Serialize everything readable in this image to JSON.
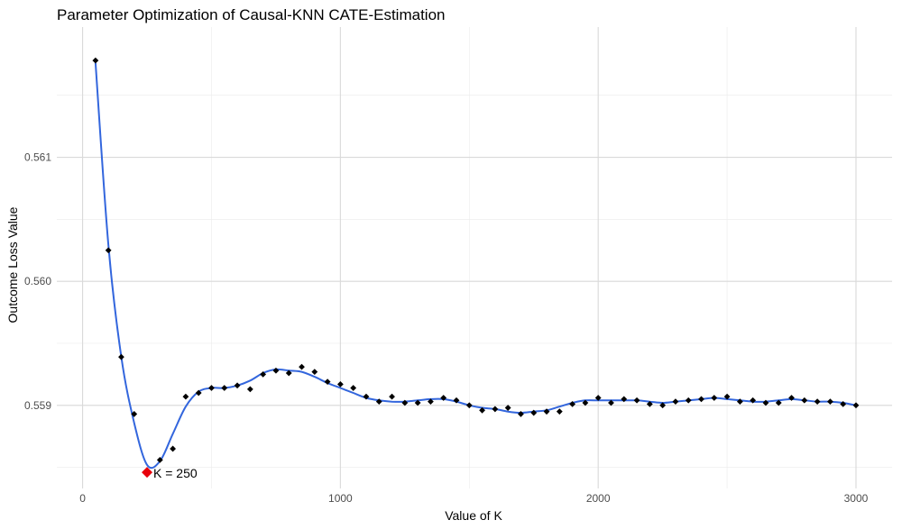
{
  "chart_data": {
    "type": "scatter",
    "title": "Parameter Optimization of Causal-KNN CATE-Estimation",
    "xlabel": "Value of K",
    "ylabel": "Outcome Loss Value",
    "xlim": [
      -100,
      3140
    ],
    "ylim": [
      0.55833,
      0.56205
    ],
    "x_ticks": [
      0,
      1000,
      2000,
      3000
    ],
    "x_tick_labels": [
      "0",
      "1000",
      "2000",
      "3000"
    ],
    "y_ticks": [
      0.559,
      0.56,
      0.561
    ],
    "y_tick_labels": [
      "0.559",
      "0.560",
      "0.561"
    ],
    "grid": true,
    "series": [
      {
        "mark": "point",
        "x": [
          50,
          100,
          150,
          200,
          250,
          300,
          350,
          400,
          450,
          500,
          550,
          600,
          650,
          700,
          750,
          800,
          850,
          900,
          950,
          1000,
          1050,
          1100,
          1150,
          1200,
          1250,
          1300,
          1350,
          1400,
          1450,
          1500,
          1550,
          1600,
          1650,
          1700,
          1750,
          1800,
          1850,
          1900,
          1950,
          2000,
          2050,
          2100,
          2150,
          2200,
          2250,
          2300,
          2350,
          2400,
          2450,
          2500,
          2550,
          2600,
          2650,
          2700,
          2750,
          2800,
          2850,
          2900,
          2950,
          3000
        ],
        "y": [
          0.56178,
          0.56025,
          0.55939,
          0.55893,
          0.55846,
          0.55856,
          0.55865,
          0.55907,
          0.5591,
          0.55914,
          0.55914,
          0.55916,
          0.55913,
          0.55925,
          0.55928,
          0.55926,
          0.55931,
          0.55927,
          0.55919,
          0.55917,
          0.55914,
          0.55907,
          0.55903,
          0.55907,
          0.55902,
          0.55902,
          0.55903,
          0.55906,
          0.55904,
          0.559,
          0.55896,
          0.55897,
          0.55898,
          0.55893,
          0.55894,
          0.55895,
          0.55895,
          0.55901,
          0.55902,
          0.55906,
          0.55902,
          0.55905,
          0.55904,
          0.55901,
          0.559,
          0.55903,
          0.55904,
          0.55905,
          0.55906,
          0.55907,
          0.55903,
          0.55904,
          0.55902,
          0.55902,
          0.55906,
          0.55904,
          0.55903,
          0.55903,
          0.55901,
          0.559
        ],
        "color": "#000000"
      },
      {
        "mark": "smooth-line",
        "x": [
          50,
          100,
          150,
          200,
          250,
          300,
          350,
          400,
          450,
          500,
          550,
          600,
          650,
          700,
          750,
          800,
          850,
          900,
          950,
          1000,
          1050,
          1100,
          1150,
          1200,
          1250,
          1300,
          1350,
          1400,
          1450,
          1500,
          1550,
          1600,
          1650,
          1700,
          1750,
          1800,
          1850,
          1900,
          1950,
          2000,
          2050,
          2100,
          2150,
          2200,
          2250,
          2300,
          2350,
          2400,
          2450,
          2500,
          2550,
          2600,
          2650,
          2700,
          2750,
          2800,
          2850,
          2900,
          2950,
          3000
        ],
        "y": [
          0.56176,
          0.56029,
          0.55939,
          0.55886,
          0.55852,
          0.55855,
          0.55877,
          0.55899,
          0.55911,
          0.55914,
          0.55914,
          0.55916,
          0.5592,
          0.55926,
          0.55929,
          0.55928,
          0.55927,
          0.55923,
          0.55918,
          0.55914,
          0.5591,
          0.55906,
          0.55904,
          0.55903,
          0.55903,
          0.55904,
          0.55905,
          0.55905,
          0.55903,
          0.559,
          0.55898,
          0.55897,
          0.55895,
          0.55894,
          0.55895,
          0.55896,
          0.55899,
          0.55902,
          0.55904,
          0.55904,
          0.55904,
          0.55904,
          0.55904,
          0.55903,
          0.55902,
          0.55903,
          0.55904,
          0.55905,
          0.55906,
          0.55905,
          0.55904,
          0.55903,
          0.55903,
          0.55904,
          0.55905,
          0.55904,
          0.55903,
          0.55903,
          0.55902,
          0.559
        ],
        "color": "#3366dd"
      }
    ],
    "highlight": {
      "x": 250,
      "y": 0.55846,
      "label": "K =  250",
      "color": "#e8000b"
    }
  }
}
